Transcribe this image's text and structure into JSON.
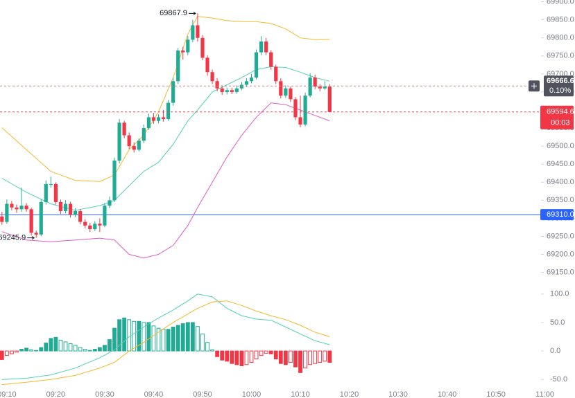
{
  "chart_data": {
    "type": "candlestick",
    "xlim": [
      548.6,
      659.2
    ],
    "xticks": [
      {
        "value": 550,
        "label": "09:10"
      },
      {
        "value": 560,
        "label": "09:20"
      },
      {
        "value": 570,
        "label": "09:30"
      },
      {
        "value": 580,
        "label": "09:40"
      },
      {
        "value": 590,
        "label": "09:50"
      },
      {
        "value": 600,
        "label": "10:00"
      },
      {
        "value": 610,
        "label": "10:10"
      },
      {
        "value": 620,
        "label": "10:20"
      },
      {
        "value": 630,
        "label": "10:30"
      },
      {
        "value": 640,
        "label": "10:40"
      },
      {
        "value": 650,
        "label": "10:50"
      },
      {
        "value": 660,
        "label": "11:00"
      }
    ],
    "ylim": [
      69130,
      69905
    ],
    "yticks": [
      {
        "value": 69150,
        "label": "69150.0"
      },
      {
        "value": 69200,
        "label": "69200.0"
      },
      {
        "value": 69250,
        "label": "69250.0"
      },
      {
        "value": 69300,
        "label": "69300.0"
      },
      {
        "value": 69350,
        "label": "69350.0"
      },
      {
        "value": 69400,
        "label": "69400.0"
      },
      {
        "value": 69450,
        "label": "69450.0"
      },
      {
        "value": 69500,
        "label": "69500.0"
      },
      {
        "value": 69550,
        "label": "69550.0"
      },
      {
        "value": 69600,
        "label": "69600.0"
      },
      {
        "value": 69650,
        "label": "69650.0"
      },
      {
        "value": 69700,
        "label": "69700.0"
      },
      {
        "value": 69750,
        "label": "69750.0"
      },
      {
        "value": 69800,
        "label": "69800.0"
      },
      {
        "value": 69850,
        "label": "69850.0"
      },
      {
        "value": 69900,
        "label": "69900.0"
      }
    ],
    "up_color": "#22ab94",
    "down_color": "#f23645",
    "x": [
      549,
      550,
      551,
      552,
      553,
      554,
      555,
      556,
      557,
      558,
      559,
      560,
      561,
      562,
      563,
      564,
      565,
      566,
      567,
      568,
      569,
      570,
      571,
      572,
      573,
      574,
      575,
      576,
      577,
      578,
      579,
      580,
      581,
      582,
      583,
      584,
      585,
      586,
      587,
      588,
      589,
      590,
      591,
      592,
      593,
      594,
      595,
      596,
      597,
      598,
      599,
      600,
      601,
      602,
      603,
      604,
      605,
      606,
      607,
      608,
      609,
      610,
      611,
      612,
      613,
      614,
      615,
      616
    ],
    "open": [
      69305,
      69290,
      69340,
      69330,
      69325,
      69335,
      69325,
      69260,
      69255,
      69345,
      69395,
      69395,
      69345,
      69320,
      69340,
      69310,
      69320,
      69290,
      69280,
      69270,
      69285,
      69280,
      69335,
      69350,
      69460,
      69565,
      69530,
      69500,
      69490,
      69515,
      69550,
      69580,
      69570,
      69580,
      69575,
      69620,
      69680,
      69765,
      69760,
      69795,
      69835,
      69800,
      69745,
      69705,
      69680,
      69660,
      69650,
      69655,
      69650,
      69660,
      69670,
      69680,
      69690,
      69760,
      69790,
      69760,
      69720,
      69680,
      69640,
      69660,
      69630,
      69580,
      69560,
      69640,
      69690,
      69665,
      69660,
      69665
    ],
    "high": [
      69318,
      69352,
      69348,
      69338,
      69385,
      69342,
      69330,
      69266,
      69352,
      69405,
      69415,
      69400,
      69352,
      69350,
      69346,
      69328,
      69326,
      69298,
      69288,
      69292,
      69300,
      69342,
      69360,
      69468,
      69575,
      69570,
      69538,
      69510,
      69522,
      69560,
      69590,
      69592,
      69588,
      69600,
      69628,
      69690,
      69772,
      69775,
      69805,
      69850,
      69867.9,
      69808,
      69752,
      69712,
      69688,
      69668,
      69662,
      69662,
      69668,
      69678,
      69688,
      69700,
      69768,
      69805,
      69800,
      69766,
      69726,
      69688,
      69668,
      69665,
      69636,
      69640,
      69648,
      69702,
      69698,
      69672,
      69680,
      69672
    ],
    "low": [
      69282,
      69285,
      69322,
      69315,
      69318,
      69318,
      69252,
      69245.9,
      69250,
      69338,
      69385,
      69338,
      69312,
      69314,
      69302,
      69303,
      69283,
      69272,
      69262,
      69265,
      69262,
      69275,
      69328,
      69345,
      69452,
      69522,
      69492,
      69482,
      69485,
      69508,
      69545,
      69562,
      69563,
      69568,
      69570,
      69612,
      69672,
      69740,
      69752,
      69788,
      69790,
      69738,
      69695,
      69672,
      69652,
      69642,
      69643,
      69644,
      69645,
      69655,
      69664,
      69674,
      69685,
      69752,
      69752,
      69712,
      69672,
      69632,
      69634,
      69622,
      69572,
      69552,
      69555,
      69635,
      69658,
      69652,
      69656,
      69594.6
    ],
    "close": [
      69290,
      69340,
      69330,
      69325,
      69335,
      69325,
      69260,
      69255,
      69345,
      69395,
      69395,
      69345,
      69320,
      69340,
      69310,
      69320,
      69290,
      69280,
      69270,
      69285,
      69280,
      69335,
      69350,
      69460,
      69565,
      69530,
      69500,
      69490,
      69515,
      69550,
      69580,
      69570,
      69580,
      69575,
      69620,
      69680,
      69765,
      69760,
      69795,
      69835,
      69800,
      69745,
      69705,
      69680,
      69660,
      69650,
      69655,
      69650,
      69660,
      69670,
      69680,
      69690,
      69760,
      69790,
      69760,
      69720,
      69680,
      69640,
      69660,
      69630,
      69580,
      69560,
      69640,
      69690,
      69665,
      69660,
      69665,
      69594.6
    ],
    "line_x": [
      549,
      554,
      559,
      564,
      569,
      572,
      575,
      578,
      581,
      584,
      587,
      589,
      592,
      595,
      598,
      601,
      604,
      607,
      610,
      613,
      616
    ],
    "bands": [
      {
        "color": "#f5b82e",
        "values": [
          69551,
          69490,
          69430,
          69405,
          69402,
          69420,
          69490,
          69530,
          69595,
          69690,
          69810,
          69860,
          69855,
          69848,
          69845,
          69845,
          69840,
          69825,
          69800,
          69795,
          69796
        ]
      },
      {
        "color": "#4fd1b8",
        "values": [
          69411,
          69372,
          69340,
          69322,
          69335,
          69350,
          69390,
          69430,
          69455,
          69505,
          69570,
          69600,
          69650,
          69670,
          69690,
          69712,
          69720,
          69718,
          69705,
          69690,
          69680
        ]
      },
      {
        "color": "#e05bc8",
        "values": [
          69263,
          69240,
          69235,
          69240,
          69245,
          69240,
          69200,
          69190,
          69200,
          69225,
          69280,
          69330,
          69400,
          69470,
          69530,
          69580,
          69620,
          69615,
          69600,
          69585,
          69570
        ]
      }
    ],
    "marker_price": 69666.6,
    "marker_change": {
      "value": 0.1,
      "label": "0.10%"
    },
    "countdown": "00:03",
    "line_price": {
      "value": 69310,
      "label": "69310.0"
    },
    "line_color": "#2962ff",
    "macd": {
      "ylim": [
        -68,
        118
      ],
      "yticks": [
        {
          "value": 100,
          "label": "100.0"
        },
        {
          "value": 50,
          "label": "50.0"
        },
        {
          "value": 0,
          "label": "0.0"
        },
        {
          "value": -50,
          "label": "-50.0"
        }
      ],
      "histogram": [
        -15,
        -8,
        -5,
        -2,
        3,
        5,
        2,
        1,
        6,
        14,
        22,
        24,
        19,
        16,
        13,
        10,
        6,
        3,
        1,
        3,
        6,
        10,
        20,
        40,
        55,
        58,
        55,
        52,
        52,
        50,
        50,
        44,
        40,
        38,
        38,
        42,
        45,
        48,
        50,
        50,
        43,
        30,
        15,
        2,
        -10,
        -16,
        -18,
        -22,
        -24,
        -26,
        -24,
        -20,
        -14,
        -8,
        -4,
        -5,
        -14,
        -22,
        -24,
        -20,
        -28,
        -38,
        -30,
        -24,
        -22,
        -20,
        -18,
        -20
      ],
      "lines": [
        {
          "color": "#4fd1b8",
          "values": [
            -50,
            -48,
            -42,
            -30,
            -12,
            2,
            25,
            42,
            58,
            72,
            88,
            100,
            95,
            75,
            62,
            56,
            54,
            42,
            30,
            18,
            11
          ]
        },
        {
          "color": "#f5b82e",
          "values": [
            -59,
            -55,
            -50,
            -43,
            -30,
            -20,
            0,
            15,
            33,
            50,
            65,
            75,
            86,
            88,
            80,
            70,
            62,
            55,
            45,
            33,
            25
          ]
        }
      ]
    }
  }
}
